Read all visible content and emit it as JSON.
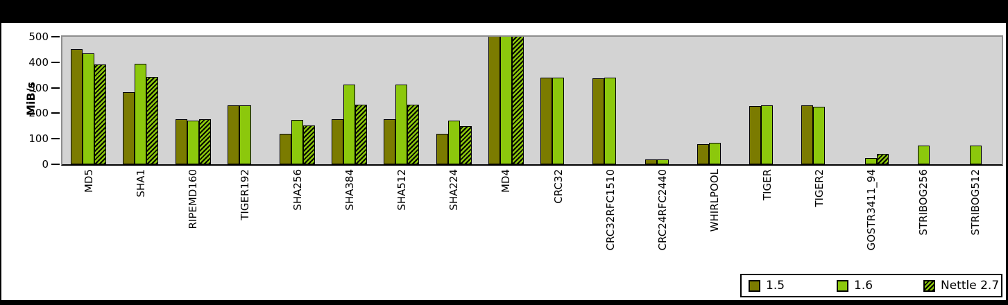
{
  "chart_data": {
    "type": "bar",
    "title": "",
    "ylabel": "MiB/s",
    "xlabel": "",
    "ylim": [
      0,
      500
    ],
    "yticks": [
      0,
      100,
      200,
      300,
      400,
      500
    ],
    "grid": false,
    "legend_position": "bottom-right",
    "plot_background": "#d3d3d3",
    "categories": [
      "MD5",
      "SHA1",
      "RIPEMD160",
      "TIGER192",
      "SHA256",
      "SHA384",
      "SHA512",
      "SHA224",
      "MD4",
      "CRC32",
      "CRC32RFC1510",
      "CRC24RFC2440",
      "WHIRLPOOL",
      "TIGER",
      "TIGER2",
      "GOSTR3411_94",
      "STRIBOG256",
      "STRIBOG512"
    ],
    "series": [
      {
        "name": "1.5",
        "color": "#7b7b00",
        "hatch": false,
        "values": [
          450,
          282,
          176,
          232,
          120,
          177,
          177,
          120,
          500,
          340,
          338,
          18,
          80,
          228,
          232,
          null,
          null,
          null
        ]
      },
      {
        "name": "1.6",
        "color": "#8cc80c",
        "hatch": false,
        "values": [
          435,
          393,
          172,
          232,
          174,
          312,
          312,
          172,
          500,
          340,
          340,
          18,
          83,
          231,
          226,
          24,
          74,
          74
        ]
      },
      {
        "name": "Nettle 2.7",
        "color": "#8cc80c",
        "hatch": true,
        "hatch_color": "#000000",
        "values": [
          390,
          342,
          176,
          null,
          152,
          235,
          235,
          150,
          500,
          null,
          null,
          null,
          null,
          null,
          null,
          40,
          null,
          null
        ]
      }
    ]
  }
}
